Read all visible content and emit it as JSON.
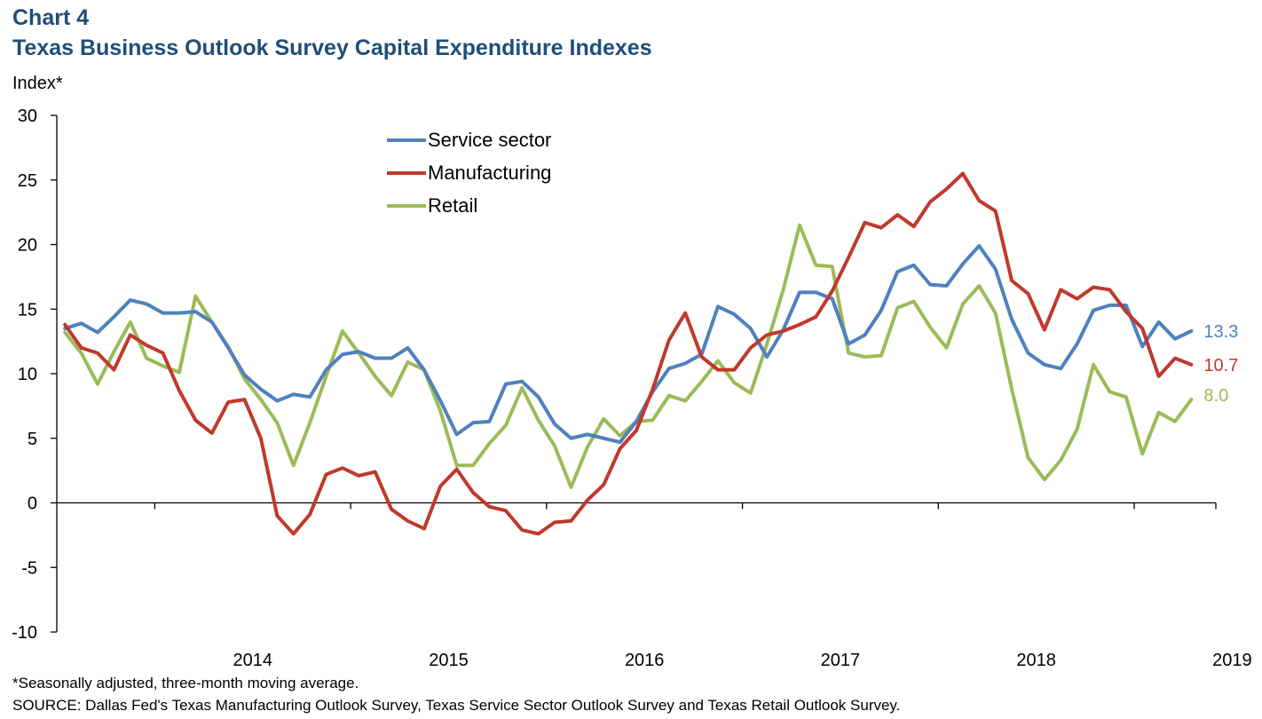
{
  "header": {
    "label": "Chart 4",
    "title": "Texas Business Outlook Survey Capital Expenditure Indexes"
  },
  "footer": {
    "note": "*Seasonally adjusted, three-month moving average.",
    "source": "SOURCE: Dallas Fed's Texas Manufacturing Outlook Survey, Texas Service Sector Outlook Survey and Texas Retail Outlook Survey."
  },
  "chart_data": {
    "type": "line",
    "title": "Texas Business Outlook Survey Capital Expenditure Indexes",
    "ylabel": "Index*",
    "xlabel": "",
    "ylim": [
      -10,
      30
    ],
    "yticks": [
      30,
      25,
      20,
      15,
      10,
      5,
      0,
      -5,
      -10
    ],
    "x_start": "2013-07",
    "x_end": "2019-05",
    "year_labels": [
      "2014",
      "2015",
      "2016",
      "2017",
      "2018",
      "2019"
    ],
    "legend_position": "top-center",
    "grid": false,
    "series": [
      {
        "name": "Service sector",
        "color": "#4F81BD",
        "end_label": "13.3",
        "values": [
          13.5,
          13.9,
          13.2,
          14.4,
          15.7,
          15.4,
          14.7,
          14.7,
          14.8,
          14.0,
          12.0,
          9.9,
          8.8,
          7.9,
          8.4,
          8.2,
          10.3,
          11.5,
          11.7,
          11.2,
          11.2,
          12.0,
          10.3,
          7.9,
          5.3,
          6.2,
          6.3,
          9.2,
          9.4,
          8.2,
          6.1,
          5.0,
          5.3,
          5.0,
          4.7,
          6.3,
          8.6,
          10.4,
          10.8,
          11.5,
          15.2,
          14.6,
          13.5,
          11.3,
          13.4,
          16.3,
          16.3,
          15.8,
          12.3,
          13.0,
          14.9,
          17.9,
          18.4,
          16.9,
          16.8,
          18.5,
          19.9,
          18.1,
          14.2,
          11.6,
          10.7,
          10.4,
          12.3,
          14.9,
          15.3,
          15.3,
          12.1,
          14.0,
          12.7,
          13.3
        ]
      },
      {
        "name": "Manufacturing",
        "color": "#C0392B",
        "end_label": "10.7",
        "values": [
          13.8,
          12.0,
          11.6,
          10.3,
          13.0,
          12.2,
          11.6,
          8.7,
          6.4,
          5.4,
          7.8,
          8.0,
          5.0,
          -1.0,
          -2.4,
          -0.9,
          2.2,
          2.7,
          2.1,
          2.4,
          -0.5,
          -1.4,
          -2.0,
          1.3,
          2.6,
          0.8,
          -0.3,
          -0.6,
          -2.1,
          -2.4,
          -1.5,
          -1.4,
          0.2,
          1.4,
          4.2,
          5.6,
          8.8,
          12.6,
          14.7,
          11.3,
          10.3,
          10.3,
          12.0,
          13.0,
          13.3,
          13.8,
          14.4,
          16.4,
          19.0,
          21.7,
          21.3,
          22.3,
          21.4,
          23.3,
          24.3,
          25.5,
          23.4,
          22.6,
          17.2,
          16.2,
          13.4,
          16.5,
          15.8,
          16.7,
          16.5,
          14.8,
          13.5,
          9.8,
          11.2,
          10.7
        ]
      },
      {
        "name": "Retail",
        "color": "#9BBB59",
        "end_label": "8.0",
        "values": [
          13.2,
          11.6,
          9.2,
          11.7,
          14.0,
          11.2,
          10.6,
          10.1,
          16.0,
          14.0,
          12.1,
          9.6,
          8.0,
          6.2,
          2.9,
          6.2,
          9.8,
          13.3,
          11.6,
          9.8,
          8.3,
          10.9,
          10.3,
          7.1,
          2.9,
          2.9,
          4.6,
          6.0,
          8.9,
          6.4,
          4.4,
          1.2,
          4.3,
          6.5,
          5.2,
          6.3,
          6.4,
          8.3,
          7.9,
          9.4,
          11.0,
          9.3,
          8.5,
          12.3,
          16.5,
          21.5,
          18.4,
          18.3,
          11.6,
          11.3,
          11.4,
          15.1,
          15.6,
          13.6,
          12.0,
          15.4,
          16.8,
          14.7,
          8.8,
          3.5,
          1.8,
          3.3,
          5.7,
          10.7,
          8.6,
          8.2,
          3.8,
          7.0,
          6.3,
          8.0
        ]
      }
    ]
  }
}
